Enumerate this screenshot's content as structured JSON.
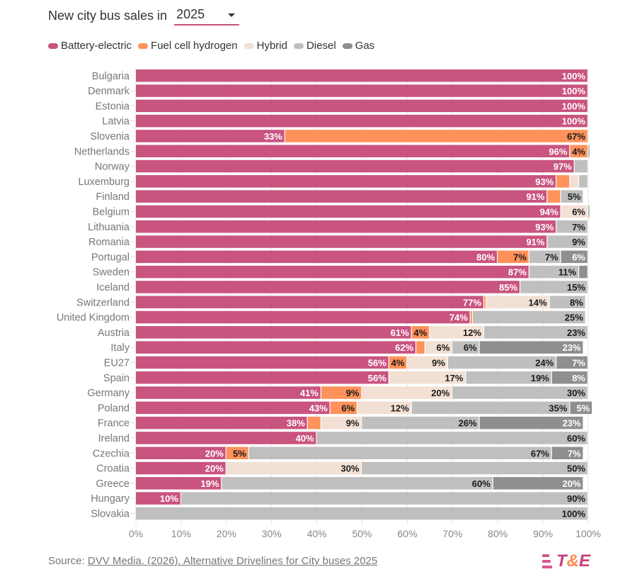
{
  "header": {
    "title": "New city bus sales in",
    "year_selected": "2025"
  },
  "colors": {
    "Battery-electric": "#c9547f",
    "Fuel cell hydrogen": "#ff915a",
    "Hybrid": "#f2e0d4",
    "Diesel": "#bfbfbf",
    "Gas": "#8f8f8f"
  },
  "label_colors": {
    "Battery-electric": "#ffffff",
    "Fuel cell hydrogen": "#1a1a1a",
    "Hybrid": "#1a1a1a",
    "Diesel": "#1a1a1a",
    "Gas": "#ffffff"
  },
  "legend": [
    "Battery-electric",
    "Fuel cell hydrogen",
    "Hybrid",
    "Diesel",
    "Gas"
  ],
  "source": {
    "prefix": "Source: ",
    "link_text": "DVV Media. (2026). Alternative Drivelines for City buses 2025"
  },
  "logo": {
    "t": "T",
    "amp": "&",
    "e": "E"
  },
  "chart_data": {
    "type": "bar",
    "orientation": "horizontal",
    "stacked": true,
    "title": "New city bus sales in 2025",
    "xlabel": "",
    "ylabel": "",
    "xlim": [
      0,
      100
    ],
    "x_ticks": [
      "0%",
      "10%",
      "20%",
      "30%",
      "40%",
      "50%",
      "60%",
      "70%",
      "80%",
      "90%",
      "100%"
    ],
    "grid": true,
    "legend_position": "top-left",
    "categories": [
      "Bulgaria",
      "Denmark",
      "Estonia",
      "Latvia",
      "Slovenia",
      "Netherlands",
      "Norway",
      "Luxemburg",
      "Finland",
      "Belgium",
      "Lithuania",
      "Romania",
      "Portugal",
      "Sweden",
      "Iceland",
      "Switzerland",
      "United Kingdom",
      "Austria",
      "Italy",
      "EU27",
      "Spain",
      "Germany",
      "Poland",
      "France",
      "Ireland",
      "Czechia",
      "Croatia",
      "Greece",
      "Hungary",
      "Slovakia"
    ],
    "series": [
      {
        "name": "Battery-electric",
        "values": [
          100,
          100,
          100,
          100,
          33,
          96,
          97,
          93,
          91,
          94,
          93,
          91,
          80,
          87,
          85,
          77,
          74,
          61,
          62,
          56,
          56,
          41,
          43,
          38,
          40,
          20,
          20,
          19,
          10,
          0
        ]
      },
      {
        "name": "Fuel cell hydrogen",
        "values": [
          0,
          0,
          0,
          0,
          67,
          4,
          0,
          3,
          3,
          0,
          0,
          0,
          7,
          0,
          0,
          0.5,
          0.5,
          4,
          2,
          4,
          0,
          9,
          6,
          3,
          0,
          5,
          0,
          0,
          0,
          0
        ]
      },
      {
        "name": "Hybrid",
        "values": [
          0,
          0,
          0,
          0,
          0,
          0,
          0,
          2,
          0,
          6,
          0,
          0,
          0,
          0,
          0,
          14,
          0,
          12,
          6,
          9,
          17,
          20,
          12,
          9,
          0,
          0,
          30,
          0,
          0,
          0
        ]
      },
      {
        "name": "Diesel",
        "values": [
          0,
          0,
          0,
          0,
          0,
          0.5,
          3,
          2,
          5,
          0.5,
          7,
          9,
          7,
          11,
          15,
          8,
          25,
          23,
          6,
          24,
          19,
          30,
          35,
          26,
          60,
          67,
          50,
          60,
          90,
          100
        ]
      },
      {
        "name": "Gas",
        "values": [
          0,
          0,
          0,
          0,
          0,
          0,
          0,
          0,
          0,
          0,
          0,
          0,
          6,
          2,
          0,
          0,
          0,
          0,
          23,
          7,
          8,
          0,
          5,
          23,
          0,
          7,
          0,
          20,
          0,
          0
        ]
      }
    ],
    "data_labels": [
      [
        "100%",
        "",
        "",
        "",
        ""
      ],
      [
        "100%",
        "",
        "",
        "",
        ""
      ],
      [
        "100%",
        "",
        "",
        "",
        ""
      ],
      [
        "100%",
        "",
        "",
        "",
        ""
      ],
      [
        "33%",
        "67%",
        "",
        "",
        ""
      ],
      [
        "96%",
        "4%",
        "",
        "",
        ""
      ],
      [
        "97%",
        "",
        "",
        "",
        ""
      ],
      [
        "93%",
        "",
        "",
        "",
        ""
      ],
      [
        "91%",
        "",
        "",
        "5%",
        ""
      ],
      [
        "94%",
        "",
        "6%",
        "",
        ""
      ],
      [
        "93%",
        "",
        "",
        "7%",
        ""
      ],
      [
        "91%",
        "",
        "",
        "9%",
        ""
      ],
      [
        "80%",
        "7%",
        "",
        "7%",
        "6%"
      ],
      [
        "87%",
        "",
        "",
        "11%",
        ""
      ],
      [
        "85%",
        "",
        "",
        "15%",
        ""
      ],
      [
        "77%",
        "",
        "14%",
        "8%",
        ""
      ],
      [
        "74%",
        "",
        "",
        "25%",
        ""
      ],
      [
        "61%",
        "4%",
        "12%",
        "23%",
        ""
      ],
      [
        "62%",
        "",
        "6%",
        "6%",
        "23%"
      ],
      [
        "56%",
        "4%",
        "9%",
        "24%",
        "7%"
      ],
      [
        "56%",
        "",
        "17%",
        "19%",
        "8%"
      ],
      [
        "41%",
        "9%",
        "20%",
        "30%",
        ""
      ],
      [
        "43%",
        "6%",
        "12%",
        "35%",
        "5%"
      ],
      [
        "38%",
        "",
        "9%",
        "26%",
        "23%"
      ],
      [
        "40%",
        "",
        "",
        "60%",
        ""
      ],
      [
        "20%",
        "5%",
        "",
        "67%",
        "7%"
      ],
      [
        "20%",
        "",
        "30%",
        "50%",
        ""
      ],
      [
        "19%",
        "",
        "",
        "60%",
        "20%"
      ],
      [
        "10%",
        "",
        "",
        "90%",
        ""
      ],
      [
        "",
        "",
        "",
        "100%",
        ""
      ]
    ]
  }
}
